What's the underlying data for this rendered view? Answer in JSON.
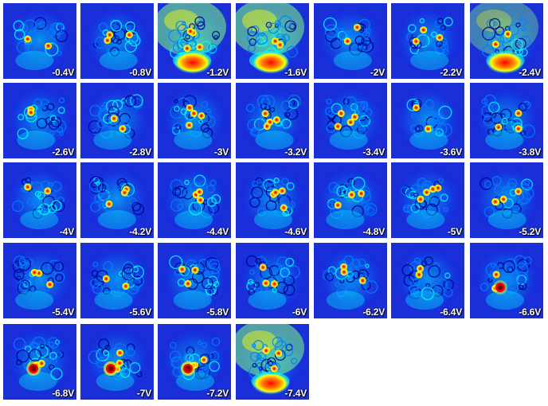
{
  "tiles": [
    {
      "voltage": "-0.4V"
    },
    {
      "voltage": "-0.8V"
    },
    {
      "voltage": "-1.2V"
    },
    {
      "voltage": "-1.6V"
    },
    {
      "voltage": "-2V"
    },
    {
      "voltage": "-2.2V"
    },
    {
      "voltage": "-2.4V"
    },
    {
      "voltage": "-2.6V"
    },
    {
      "voltage": "-2.8V"
    },
    {
      "voltage": "-3V"
    },
    {
      "voltage": "-3.2V"
    },
    {
      "voltage": "-3.4V"
    },
    {
      "voltage": "-3.6V"
    },
    {
      "voltage": "-3.8V"
    },
    {
      "voltage": "-4V"
    },
    {
      "voltage": "-4.2V"
    },
    {
      "voltage": "-4.4V"
    },
    {
      "voltage": "-4.6V"
    },
    {
      "voltage": "-4.8V"
    },
    {
      "voltage": "-5V"
    },
    {
      "voltage": "-5.2V"
    },
    {
      "voltage": "-5.4V"
    },
    {
      "voltage": "-5.6V"
    },
    {
      "voltage": "-5.8V"
    },
    {
      "voltage": "-6V"
    },
    {
      "voltage": "-6.2V"
    },
    {
      "voltage": "-6.4V"
    },
    {
      "voltage": "-6.6V"
    },
    {
      "voltage": "-6.8V"
    },
    {
      "voltage": "-7V"
    },
    {
      "voltage": "-7.2V"
    },
    {
      "voltage": "-7.4V"
    }
  ],
  "colormap": [
    "#00008f",
    "#0000ff",
    "#0080ff",
    "#00ffff",
    "#80ff80",
    "#ffff00",
    "#ff8000",
    "#ff0000",
    "#800000"
  ],
  "background_color": "#1a2fd8"
}
